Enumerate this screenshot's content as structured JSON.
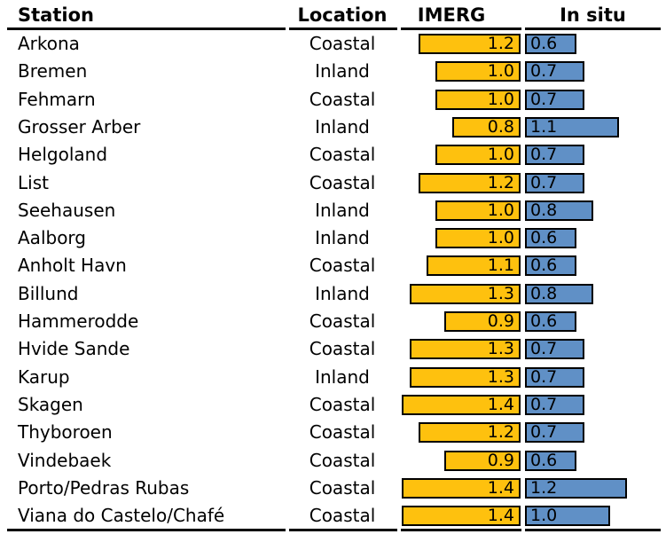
{
  "chart_data": {
    "type": "table",
    "title": "",
    "columns": [
      "Station",
      "Location",
      "IMERG",
      "In situ"
    ],
    "bar_columns": [
      "IMERG",
      "In situ"
    ],
    "value_range": [
      0,
      1.4
    ],
    "rows": [
      {
        "station": "Arkona",
        "location": "Coastal",
        "imerg": 1.2,
        "insitu": 0.6
      },
      {
        "station": "Bremen",
        "location": "Inland",
        "imerg": 1.0,
        "insitu": 0.7
      },
      {
        "station": "Fehmarn",
        "location": "Coastal",
        "imerg": 1.0,
        "insitu": 0.7
      },
      {
        "station": "Grosser Arber",
        "location": "Inland",
        "imerg": 0.8,
        "insitu": 1.1
      },
      {
        "station": "Helgoland",
        "location": "Coastal",
        "imerg": 1.0,
        "insitu": 0.7
      },
      {
        "station": "List",
        "location": "Coastal",
        "imerg": 1.2,
        "insitu": 0.7
      },
      {
        "station": "Seehausen",
        "location": "Inland",
        "imerg": 1.0,
        "insitu": 0.8
      },
      {
        "station": "Aalborg",
        "location": "Inland",
        "imerg": 1.0,
        "insitu": 0.6
      },
      {
        "station": "Anholt Havn",
        "location": "Coastal",
        "imerg": 1.1,
        "insitu": 0.6
      },
      {
        "station": "Billund",
        "location": "Inland",
        "imerg": 1.3,
        "insitu": 0.8
      },
      {
        "station": "Hammerodde",
        "location": "Coastal",
        "imerg": 0.9,
        "insitu": 0.6
      },
      {
        "station": "Hvide Sande",
        "location": "Coastal",
        "imerg": 1.3,
        "insitu": 0.7
      },
      {
        "station": "Karup",
        "location": "Inland",
        "imerg": 1.3,
        "insitu": 0.7
      },
      {
        "station": "Skagen",
        "location": "Coastal",
        "imerg": 1.4,
        "insitu": 0.7
      },
      {
        "station": "Thyboroen",
        "location": "Coastal",
        "imerg": 1.2,
        "insitu": 0.7
      },
      {
        "station": "Vindebaek",
        "location": "Coastal",
        "imerg": 0.9,
        "insitu": 0.6
      },
      {
        "station": "Porto/Pedras Rubas",
        "location": "Coastal",
        "imerg": 1.4,
        "insitu": 1.2
      },
      {
        "station": "Viana do Castelo/Chafé",
        "location": "Coastal",
        "imerg": 1.4,
        "insitu": 1.0
      }
    ],
    "colors": {
      "imerg_bar": "#FEC10E",
      "insitu_bar": "#6090C6",
      "bar_border": "#000000",
      "text": "#000000",
      "background": "#FFFFFF"
    }
  }
}
